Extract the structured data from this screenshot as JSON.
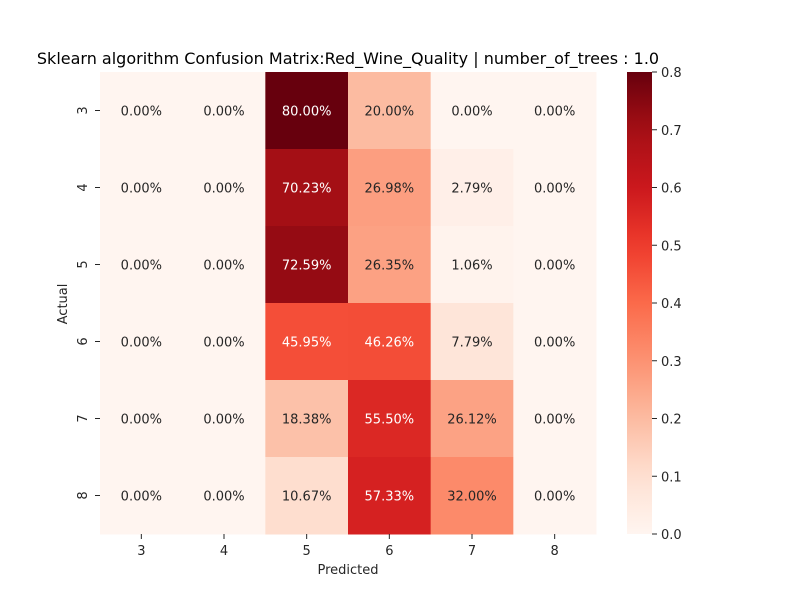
{
  "chart_data": {
    "type": "heatmap",
    "title": "Sklearn algorithm Confusion Matrix:Red_Wine_Quality | number_of_trees : 1.0",
    "xlabel": "Predicted",
    "ylabel": "Actual",
    "x_categories": [
      "3",
      "4",
      "5",
      "6",
      "7",
      "8"
    ],
    "y_categories": [
      "3",
      "4",
      "5",
      "6",
      "7",
      "8"
    ],
    "values": [
      [
        0.0,
        0.0,
        0.8,
        0.2,
        0.0,
        0.0
      ],
      [
        0.0,
        0.0,
        0.7023,
        0.2698,
        0.0279,
        0.0
      ],
      [
        0.0,
        0.0,
        0.7259,
        0.2635,
        0.0106,
        0.0
      ],
      [
        0.0,
        0.0,
        0.4595,
        0.4626,
        0.0779,
        0.0
      ],
      [
        0.0,
        0.0,
        0.1838,
        0.555,
        0.2612,
        0.0
      ],
      [
        0.0,
        0.0,
        0.1067,
        0.5733,
        0.32,
        0.0
      ]
    ],
    "cell_labels": [
      [
        "0.00%",
        "0.00%",
        "80.00%",
        "20.00%",
        "0.00%",
        "0.00%"
      ],
      [
        "0.00%",
        "0.00%",
        "70.23%",
        "26.98%",
        "2.79%",
        "0.00%"
      ],
      [
        "0.00%",
        "0.00%",
        "72.59%",
        "26.35%",
        "1.06%",
        "0.00%"
      ],
      [
        "0.00%",
        "0.00%",
        "45.95%",
        "46.26%",
        "7.79%",
        "0.00%"
      ],
      [
        "0.00%",
        "0.00%",
        "18.38%",
        "55.50%",
        "26.12%",
        "0.00%"
      ],
      [
        "0.00%",
        "0.00%",
        "10.67%",
        "57.33%",
        "32.00%",
        "0.00%"
      ]
    ],
    "colormap": "Reds",
    "color_range": [
      0.0,
      0.8
    ],
    "colorbar_ticks": [
      "0.0",
      "0.1",
      "0.2",
      "0.3",
      "0.4",
      "0.5",
      "0.6",
      "0.7",
      "0.8"
    ],
    "colorbar_placement": "right"
  }
}
